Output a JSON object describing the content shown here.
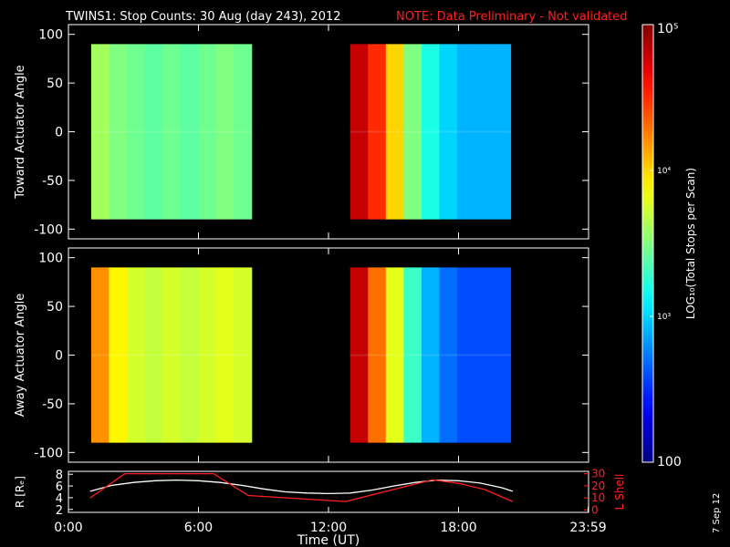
{
  "header": {
    "title": "TWINS1: Stop Counts: 30 Aug (day 243), 2012",
    "note": "NOTE: Data Preliminary - Not validated",
    "note_color": "#ff2020"
  },
  "footer": {
    "generated": "7 Sep 12"
  },
  "chart_data": [
    {
      "type": "heatmap",
      "id": "toward",
      "ylabel": "Toward Actuator Angle",
      "xlim": [
        0,
        24
      ],
      "ylim": [
        -110,
        110
      ],
      "yticks": [
        100,
        50,
        0,
        -50,
        -100
      ],
      "angle_range": [
        -90,
        90
      ],
      "segments": [
        {
          "t_start": 1.05,
          "t_end": 8.45,
          "log10_counts": [
            3.6,
            3.5,
            3.45,
            3.4,
            3.45,
            3.4,
            3.45,
            3.5,
            3.45
          ]
        },
        {
          "t_start": 13.0,
          "t_end": 20.4,
          "log10_counts": [
            4.8,
            4.5,
            4.0,
            3.5,
            3.2,
            3.0,
            2.9,
            2.9,
            2.9
          ]
        }
      ]
    },
    {
      "type": "heatmap",
      "id": "away",
      "ylabel": "Away Actuator Angle",
      "xlim": [
        0,
        24
      ],
      "ylim": [
        -110,
        110
      ],
      "yticks": [
        100,
        50,
        0,
        -50,
        -100
      ],
      "angle_range": [
        -90,
        90
      ],
      "segments": [
        {
          "t_start": 1.05,
          "t_end": 8.45,
          "log10_counts": [
            4.2,
            3.9,
            3.75,
            3.7,
            3.75,
            3.7,
            3.75,
            3.8,
            3.75
          ]
        },
        {
          "t_start": 13.0,
          "t_end": 20.4,
          "log10_counts": [
            4.8,
            4.3,
            3.8,
            3.3,
            2.9,
            2.7,
            2.6,
            2.6,
            2.6
          ]
        }
      ]
    },
    {
      "type": "line",
      "id": "orbit",
      "ylabel_left": "R [Rₑ]",
      "ylabel_right": "L Shell",
      "xlabel": "Time (UT)",
      "xticks": [
        "0:00",
        "6:00",
        "12:00",
        "18:00",
        "23:59"
      ],
      "xtick_values": [
        0,
        6,
        12,
        18,
        23.98
      ],
      "xlim": [
        0,
        24
      ],
      "ylim_left": [
        2,
        8
      ],
      "yticks_left": [
        8,
        6,
        4,
        2
      ],
      "ylim_right": [
        0,
        30
      ],
      "yticks_right": [
        30,
        20,
        10,
        0
      ],
      "series": [
        {
          "name": "R",
          "color": "#ffffff",
          "x": [
            1.0,
            2.0,
            3.0,
            4.0,
            5.0,
            6.0,
            7.0,
            8.0,
            9.0,
            10.0,
            11.0,
            12.0,
            13.0,
            14.0,
            15.0,
            16.0,
            17.0,
            18.0,
            19.0,
            20.0,
            20.5
          ],
          "y": [
            5.1,
            6.1,
            6.6,
            6.9,
            7.0,
            6.9,
            6.6,
            6.1,
            5.5,
            5.0,
            4.8,
            4.7,
            4.8,
            5.3,
            6.0,
            6.6,
            7.0,
            6.9,
            6.5,
            5.7,
            5.1
          ]
        },
        {
          "name": "L Shell",
          "color": "#ff2020",
          "x": [
            1.0,
            2.6,
            6.7,
            8.3,
            12.8,
            15.0,
            16.8,
            18.0,
            19.2,
            20.5
          ],
          "y": [
            10,
            30,
            30,
            12,
            7,
            17,
            25,
            22,
            17,
            7
          ]
        }
      ]
    }
  ],
  "colorbar": {
    "label": "LOG₁₀(Total Stops per Scan)",
    "ticks": [
      "10⁵",
      "10⁴",
      "10³",
      "100"
    ],
    "tick_log_values": [
      5,
      4,
      3,
      2
    ],
    "range": [
      2,
      5
    ]
  }
}
